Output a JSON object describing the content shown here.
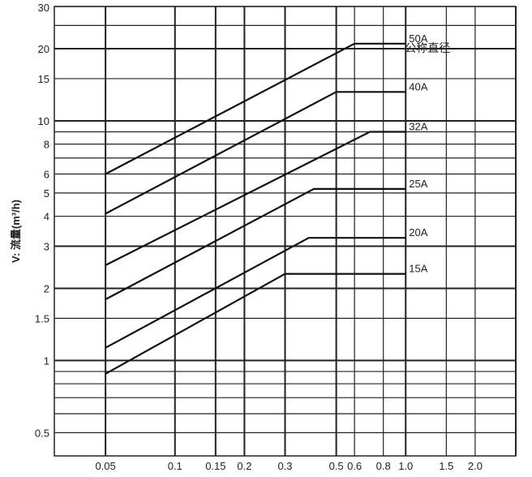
{
  "chart_data": {
    "type": "line",
    "title": "",
    "xlabel": "",
    "ylabel": "V: 流量(m³/h)",
    "legend_title": "公称直径",
    "x_scale": "log",
    "y_scale": "log",
    "xlim": [
      0.03,
      3.0
    ],
    "ylim": [
      0.4,
      30
    ],
    "grid": true,
    "x_ticks": [
      {
        "value": 0.05,
        "label": "0.05"
      },
      {
        "value": 0.1,
        "label": "0.1"
      },
      {
        "value": 0.15,
        "label": "0.15"
      },
      {
        "value": 0.2,
        "label": "0.2"
      },
      {
        "value": 0.3,
        "label": "0.3"
      },
      {
        "value": 0.5,
        "label": "0.5"
      },
      {
        "value": 0.6,
        "label": "0.6"
      },
      {
        "value": 0.8,
        "label": "0.8"
      },
      {
        "value": 1.0,
        "label": "1.0"
      },
      {
        "value": 1.5,
        "label": "1.5"
      },
      {
        "value": 2.0,
        "label": "2.0"
      }
    ],
    "x_grid_extra": [
      3.0
    ],
    "y_ticks": [
      {
        "value": 0.5,
        "label": "0.5"
      },
      {
        "value": 1,
        "label": "1"
      },
      {
        "value": 1.5,
        "label": "1.5"
      },
      {
        "value": 2,
        "label": "2"
      },
      {
        "value": 3,
        "label": "3"
      },
      {
        "value": 4,
        "label": "4"
      },
      {
        "value": 5,
        "label": "5"
      },
      {
        "value": 6,
        "label": "6"
      },
      {
        "value": 8,
        "label": "8"
      },
      {
        "value": 10,
        "label": "10"
      },
      {
        "value": 15,
        "label": "15"
      },
      {
        "value": 20,
        "label": "20"
      },
      {
        "value": 30,
        "label": "30"
      }
    ],
    "y_grid_extra": [
      0.6,
      0.7,
      0.8,
      0.9,
      7,
      9,
      25
    ],
    "series": [
      {
        "name": "50A",
        "x": [
          0.05,
          0.6,
          1.0
        ],
        "y": [
          6.0,
          21.0,
          21.0
        ]
      },
      {
        "name": "40A",
        "x": [
          0.05,
          0.5,
          1.0
        ],
        "y": [
          4.1,
          13.2,
          13.2
        ]
      },
      {
        "name": "32A",
        "x": [
          0.05,
          0.7,
          1.0
        ],
        "y": [
          2.5,
          9.0,
          9.0
        ]
      },
      {
        "name": "25A",
        "x": [
          0.05,
          0.4,
          1.0
        ],
        "y": [
          1.8,
          5.2,
          5.2
        ]
      },
      {
        "name": "20A",
        "x": [
          0.05,
          0.38,
          1.0
        ],
        "y": [
          1.13,
          3.25,
          3.25
        ]
      },
      {
        "name": "15A",
        "x": [
          0.05,
          0.3,
          1.0
        ],
        "y": [
          0.88,
          2.3,
          2.3
        ]
      }
    ]
  }
}
